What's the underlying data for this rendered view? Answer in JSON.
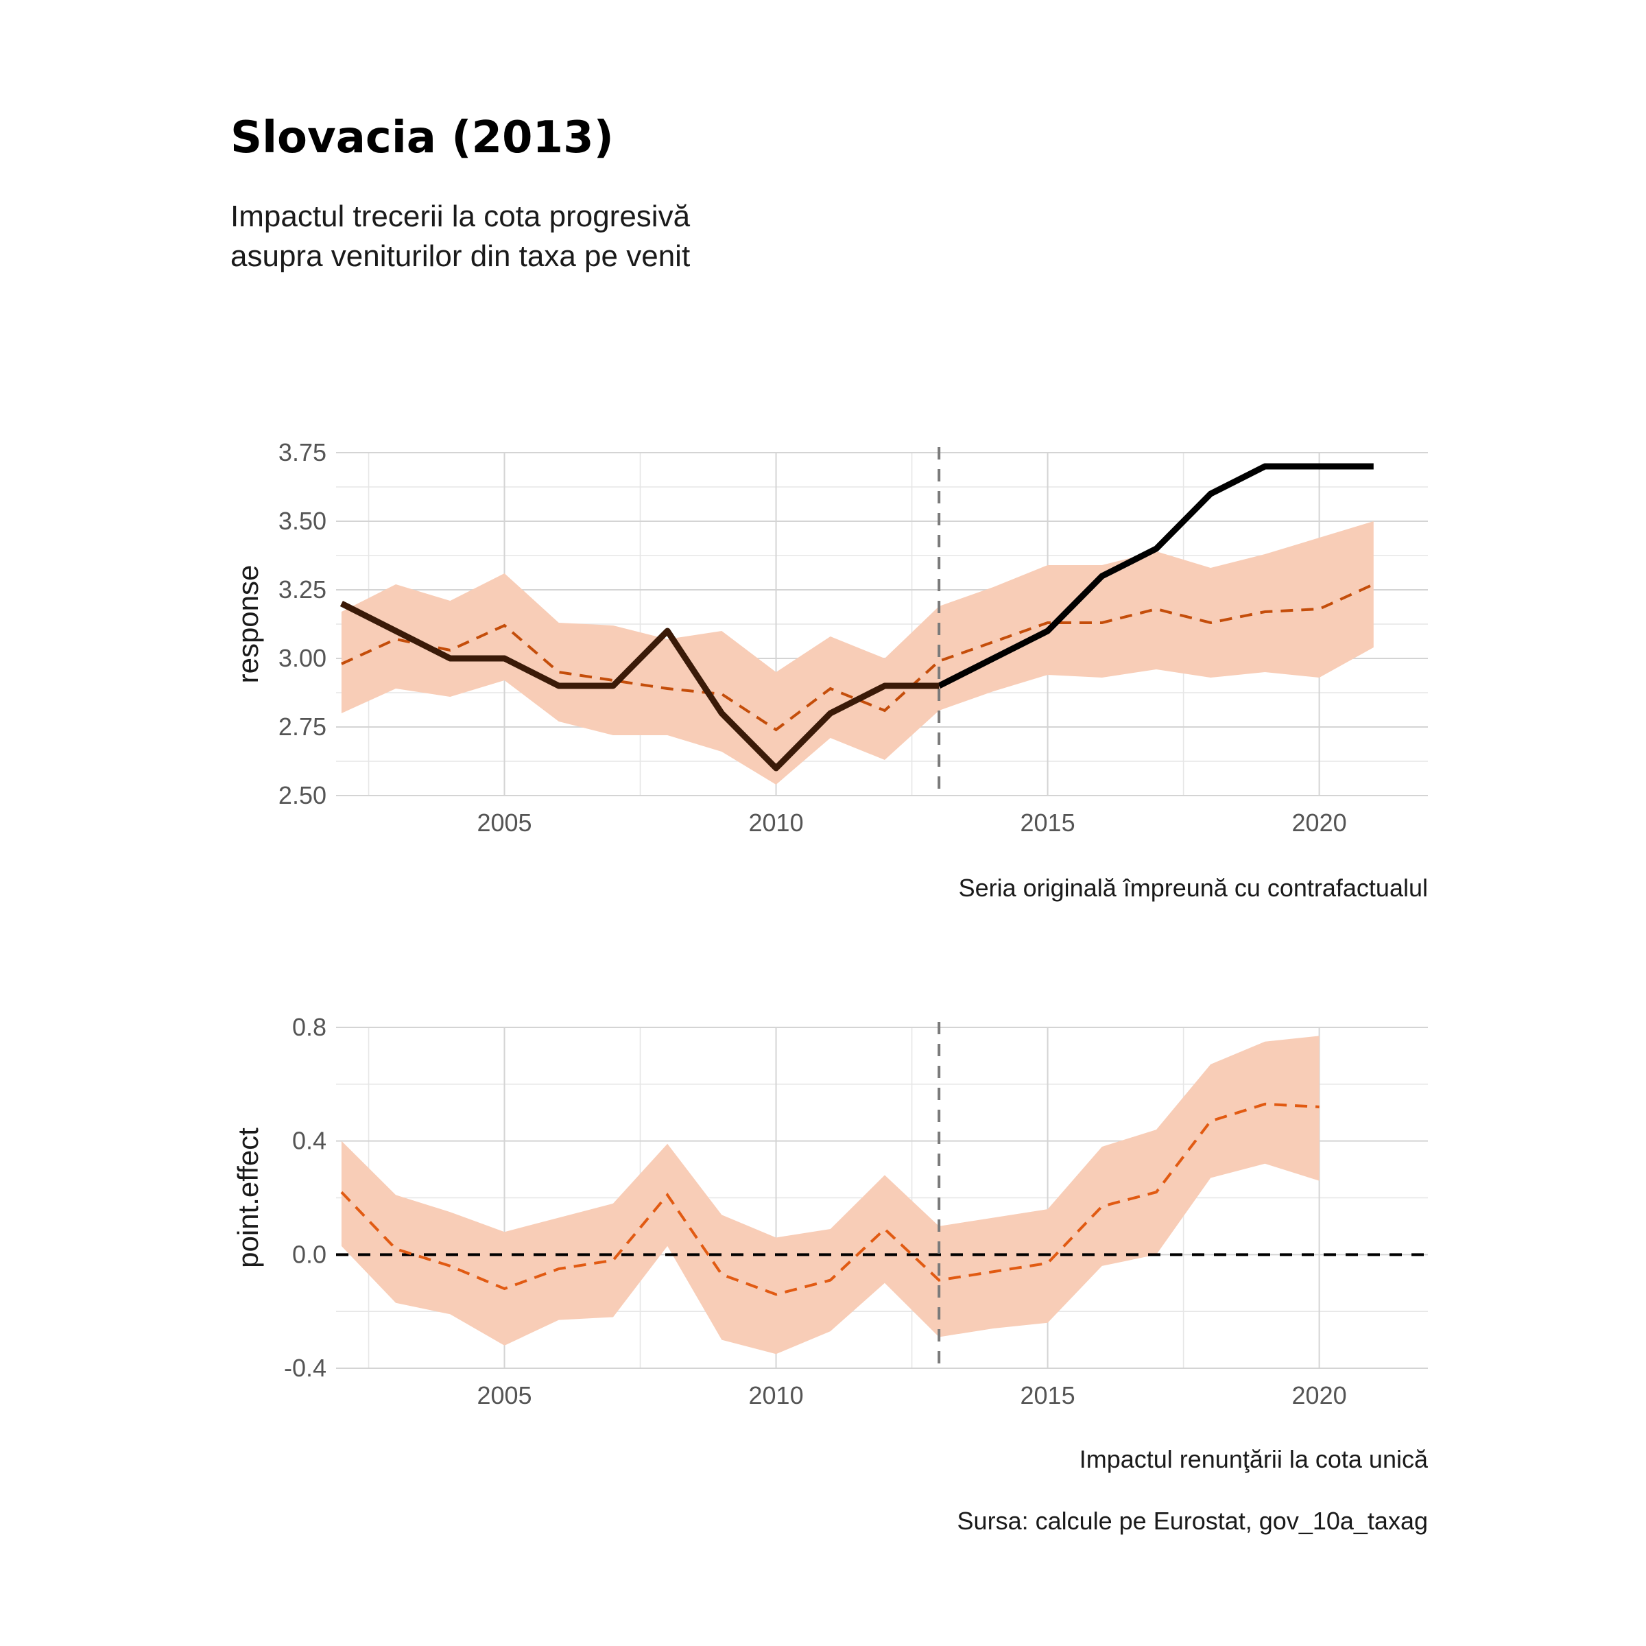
{
  "title": "Slovacia (2013)",
  "subtitle_lines": [
    "Impactul trecerii la cota progresivă",
    "asupra veniturilor din taxa pe venit"
  ],
  "source": "Sursa: calcule pe Eurostat, gov_10a_taxag",
  "colors": {
    "band": "#f8cdb7",
    "counterfactual_top": "#c44d0a",
    "effect_line": "#e15a12",
    "actual_line": "#000000",
    "actual_line_pre": "#3a1a08",
    "intervention": "#7a7a7a",
    "zero_line": "#000000"
  },
  "chart_data": [
    {
      "type": "line",
      "ylabel": "response",
      "xlabel": "Seria originală împreună cu contrafactualul",
      "xlim": [
        2001.9,
        2022
      ],
      "ylim": [
        2.5,
        3.75
      ],
      "x_ticks": [
        2005,
        2010,
        2015,
        2020
      ],
      "y_ticks": [
        2.5,
        2.75,
        3.0,
        3.25,
        3.5,
        3.75
      ],
      "y_tick_labels": [
        "2.50",
        "2.75",
        "3.00",
        "3.25",
        "3.50",
        "3.75"
      ],
      "intervention_x": 2013,
      "grid": true,
      "x": [
        2002,
        2003,
        2004,
        2005,
        2006,
        2007,
        2008,
        2009,
        2010,
        2011,
        2012,
        2013,
        2014,
        2015,
        2016,
        2017,
        2018,
        2019,
        2020,
        2021
      ],
      "actual": [
        3.2,
        3.1,
        3.0,
        3.0,
        2.9,
        2.9,
        3.1,
        2.8,
        2.6,
        2.8,
        2.9,
        2.9,
        3.0,
        3.1,
        3.3,
        3.4,
        3.6,
        3.7,
        3.7,
        3.7
      ],
      "counterfactual": [
        2.98,
        3.07,
        3.03,
        3.12,
        2.95,
        2.92,
        2.89,
        2.87,
        2.74,
        2.89,
        2.81,
        2.99,
        3.06,
        3.13,
        3.13,
        3.18,
        3.13,
        3.17,
        3.18,
        3.27
      ],
      "lower": [
        2.8,
        2.89,
        2.86,
        2.92,
        2.77,
        2.72,
        2.72,
        2.66,
        2.54,
        2.71,
        2.63,
        2.81,
        2.88,
        2.94,
        2.93,
        2.96,
        2.93,
        2.95,
        2.93,
        3.04
      ],
      "upper": [
        3.17,
        3.27,
        3.21,
        3.31,
        3.13,
        3.12,
        3.07,
        3.1,
        2.95,
        3.08,
        3.0,
        3.19,
        3.26,
        3.34,
        3.34,
        3.39,
        3.33,
        3.38,
        3.44,
        3.5
      ]
    },
    {
      "type": "line",
      "ylabel": "point.effect",
      "xlabel": "Impactul renunţării la cota unică",
      "xlim": [
        2001.9,
        2022
      ],
      "ylim": [
        -0.4,
        0.8
      ],
      "x_ticks": [
        2005,
        2010,
        2015,
        2020
      ],
      "y_ticks": [
        -0.4,
        0.0,
        0.4,
        0.8
      ],
      "y_tick_labels": [
        "-0.4",
        "0.0",
        "0.4",
        "0.8"
      ],
      "intervention_x": 2013,
      "zero_line": 0,
      "grid": true,
      "x": [
        2002,
        2003,
        2004,
        2005,
        2006,
        2007,
        2008,
        2009,
        2010,
        2011,
        2012,
        2013,
        2014,
        2015,
        2016,
        2017,
        2018,
        2019,
        2020
      ],
      "effect": [
        0.22,
        0.02,
        -0.04,
        -0.12,
        -0.05,
        -0.02,
        0.21,
        -0.07,
        -0.14,
        -0.09,
        0.09,
        -0.09,
        -0.06,
        -0.03,
        0.17,
        0.22,
        0.47,
        0.53,
        0.52
      ],
      "lower": [
        0.03,
        -0.17,
        -0.21,
        -0.32,
        -0.23,
        -0.22,
        0.03,
        -0.3,
        -0.35,
        -0.27,
        -0.1,
        -0.29,
        -0.26,
        -0.24,
        -0.04,
        0.0,
        0.27,
        0.32,
        0.26
      ],
      "upper": [
        0.4,
        0.21,
        0.15,
        0.08,
        0.13,
        0.18,
        0.39,
        0.14,
        0.06,
        0.09,
        0.28,
        0.1,
        0.13,
        0.16,
        0.38,
        0.44,
        0.67,
        0.75,
        0.77
      ]
    }
  ]
}
